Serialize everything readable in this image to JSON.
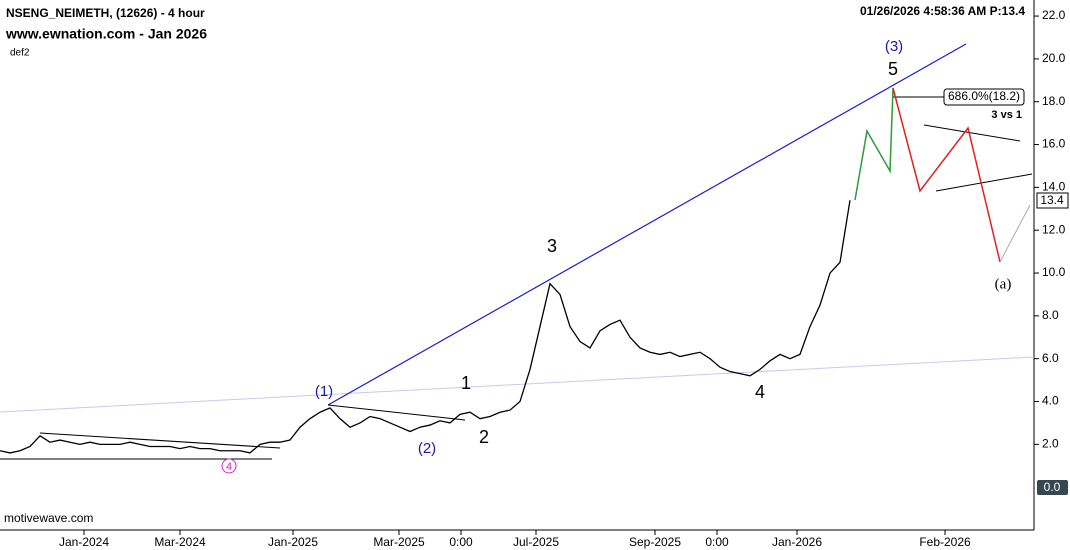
{
  "chart_data": {
    "type": "line",
    "title": "NSENG_NEIMETH, (12626) - 4 hour",
    "subtitle": "www.ewnation.com  - Jan 2026",
    "study": "def2",
    "timestamp": "01/26/2026 4:58:36 AM  P:13.4",
    "source": "motivewave.com",
    "annotations": [
      "(1)",
      "(2)",
      "1",
      "2",
      "3",
      "4",
      "5",
      "(3)",
      "4",
      "(a)",
      "686.0%(18.2)",
      "3 vs 1",
      "13.4",
      "0.0"
    ],
    "x": [
      0,
      1,
      2,
      3,
      4,
      5,
      6,
      7,
      8,
      9,
      10,
      11,
      12,
      13,
      14,
      15,
      16,
      17,
      18,
      19,
      20,
      21,
      22,
      23,
      24,
      25,
      26,
      27,
      28,
      29,
      30,
      31,
      32,
      33,
      34,
      35,
      36,
      37,
      38,
      39,
      40,
      41,
      42,
      43,
      44,
      45,
      46,
      47,
      48,
      49,
      50,
      51,
      52,
      53,
      54,
      55,
      56,
      57,
      58,
      59,
      60,
      61,
      62,
      63,
      64,
      65,
      66,
      67,
      68,
      69,
      70,
      71,
      72,
      73,
      74,
      75,
      76,
      77,
      78,
      79,
      80,
      81,
      82,
      83,
      84,
      85
    ],
    "series": [
      {
        "name": "NSENG_NEIMETH",
        "color": "#000000",
        "values": [
          1.7,
          1.6,
          1.7,
          1.9,
          2.4,
          2.1,
          2.2,
          2.1,
          2.0,
          2.1,
          2.0,
          2.0,
          2.0,
          2.1,
          2.0,
          1.9,
          1.9,
          1.9,
          1.8,
          1.9,
          1.8,
          1.8,
          1.7,
          1.7,
          1.7,
          1.6,
          2.0,
          2.1,
          2.1,
          2.2,
          2.8,
          3.2,
          3.5,
          3.7,
          3.2,
          2.8,
          3.0,
          3.3,
          3.2,
          3.0,
          2.8,
          2.6,
          2.8,
          2.9,
          3.1,
          3.0,
          3.4,
          3.5,
          3.2,
          3.3,
          3.5,
          3.6,
          4.0,
          5.5,
          7.5,
          9.5,
          9.0,
          7.5,
          6.8,
          6.5,
          7.3,
          7.6,
          7.8,
          7.0,
          6.5,
          6.3,
          6.2,
          6.3,
          6.1,
          6.2,
          6.3,
          6.0,
          5.6,
          5.4,
          5.3,
          5.2,
          5.5,
          5.9,
          6.2,
          6.0,
          6.2,
          7.5,
          8.5,
          10.0,
          10.5,
          13.4
        ]
      }
    ],
    "xlim": [
      0,
      103.3
    ],
    "xticks": [
      {
        "value": 8.4,
        "label": "Jan-2024"
      },
      {
        "value": 18.0,
        "label": "Mar-2024"
      },
      {
        "value": 29.3,
        "label": "Jan-2025"
      },
      {
        "value": 39.9,
        "label": "Mar-2025"
      },
      {
        "value": 46.1,
        "label": "0:00"
      },
      {
        "value": 53.6,
        "label": "Jul-2025"
      },
      {
        "value": 65.5,
        "label": "Sep-2025"
      },
      {
        "value": 71.7,
        "label": "0:00"
      },
      {
        "value": 79.7,
        "label": "Jan-2026"
      },
      {
        "value": 94.5,
        "label": "Feb-2026"
      }
    ],
    "ylim": [
      -2.0,
      22.75
    ],
    "yticks": [
      {
        "value": 2,
        "label": "2.0"
      },
      {
        "value": 4,
        "label": "4.0"
      },
      {
        "value": 6,
        "label": "6.0"
      },
      {
        "value": 8,
        "label": "8.0"
      },
      {
        "value": 10,
        "label": "10.0"
      },
      {
        "value": 12,
        "label": "12.0"
      },
      {
        "value": 14,
        "label": "14.0"
      },
      {
        "value": 16,
        "label": "16.0"
      },
      {
        "value": 18,
        "label": "18.0"
      },
      {
        "value": 20,
        "label": "20.0"
      },
      {
        "value": 22,
        "label": "22.0"
      }
    ],
    "grid": false
  }
}
